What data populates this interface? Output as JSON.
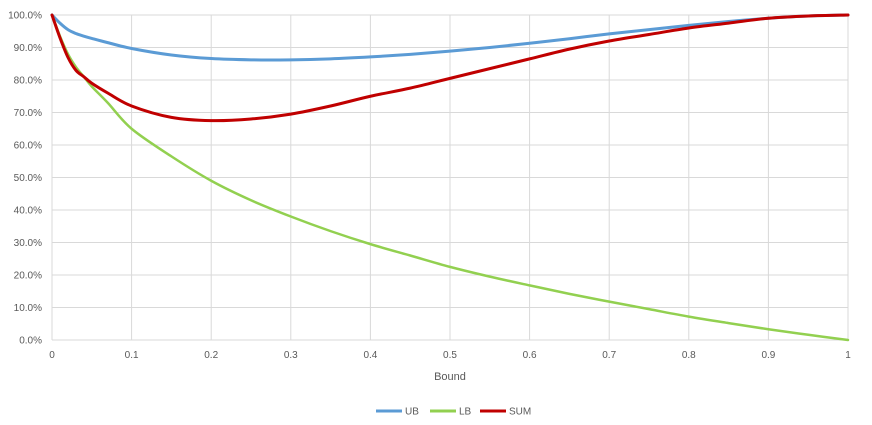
{
  "chart_data": {
    "type": "line",
    "title": "",
    "xlabel": "Bound",
    "ylabel": "",
    "xlim": [
      0,
      1
    ],
    "ylim": [
      0,
      1
    ],
    "grid": true,
    "legend_position": "bottom",
    "x_ticks": [
      "0",
      "0.1",
      "0.2",
      "0.3",
      "0.4",
      "0.5",
      "0.6",
      "0.7",
      "0.8",
      "0.9",
      "1"
    ],
    "y_ticks": [
      "0.0%",
      "10.0%",
      "20.0%",
      "30.0%",
      "40.0%",
      "50.0%",
      "60.0%",
      "70.0%",
      "80.0%",
      "90.0%",
      "100.0%"
    ],
    "x": [
      0,
      0.01,
      0.02,
      0.03,
      0.04,
      0.05,
      0.07,
      0.1,
      0.15,
      0.2,
      0.25,
      0.3,
      0.35,
      0.4,
      0.45,
      0.5,
      0.55,
      0.6,
      0.65,
      0.7,
      0.75,
      0.8,
      0.85,
      0.9,
      0.95,
      1.0
    ],
    "series": [
      {
        "name": "UB",
        "color": "#5B9BD5",
        "values": [
          1.0,
          0.975,
          0.955,
          0.943,
          0.935,
          0.928,
          0.915,
          0.897,
          0.877,
          0.866,
          0.862,
          0.862,
          0.865,
          0.871,
          0.879,
          0.889,
          0.9,
          0.913,
          0.927,
          0.942,
          0.955,
          0.968,
          0.98,
          0.99,
          0.997,
          1.0
        ]
      },
      {
        "name": "LB",
        "color": "#92D050",
        "values": [
          1.0,
          0.935,
          0.88,
          0.84,
          0.81,
          0.78,
          0.73,
          0.65,
          0.565,
          0.49,
          0.43,
          0.38,
          0.335,
          0.295,
          0.26,
          0.225,
          0.195,
          0.168,
          0.142,
          0.118,
          0.095,
          0.072,
          0.052,
          0.033,
          0.016,
          0.0
        ]
      },
      {
        "name": "SUM",
        "color": "#C00000",
        "values": [
          1.0,
          0.93,
          0.87,
          0.83,
          0.81,
          0.79,
          0.76,
          0.72,
          0.685,
          0.675,
          0.68,
          0.695,
          0.72,
          0.75,
          0.775,
          0.805,
          0.835,
          0.865,
          0.895,
          0.92,
          0.94,
          0.96,
          0.975,
          0.99,
          0.997,
          1.0
        ]
      }
    ]
  }
}
